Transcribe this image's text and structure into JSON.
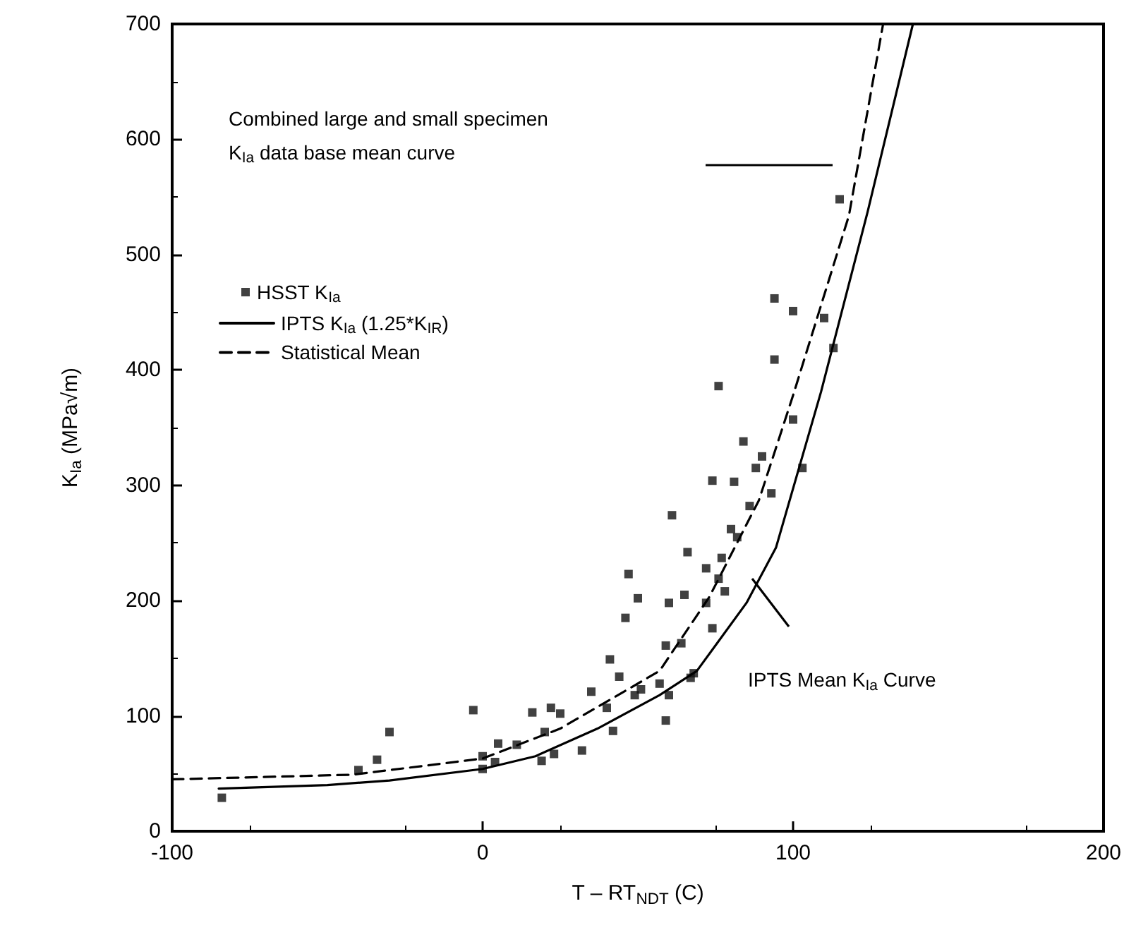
{
  "chart_data": {
    "type": "scatter",
    "xlabel": "T – RT$_{NDT}$ (C)",
    "ylabel": "K$_{Ia}$ (MPa√m)",
    "xlim": [
      -100,
      200
    ],
    "xticks": [
      -100,
      0,
      100,
      200
    ],
    "ylim": [
      0,
      700
    ],
    "yticks": [
      0,
      100,
      200,
      300,
      400,
      500,
      600,
      700
    ],
    "legend": "top left",
    "series": [
      {
        "name": "HSST K$_{Ia}$",
        "marker": "square",
        "color": "#111111",
        "x": [
          -84,
          -30,
          -34,
          -40,
          -3,
          0,
          0,
          4,
          5,
          11,
          16,
          19,
          20,
          22,
          23,
          25,
          32,
          35,
          41,
          40,
          42,
          44,
          46,
          47,
          50,
          49,
          51,
          57,
          59,
          59,
          60,
          61,
          64,
          66,
          60,
          65,
          67,
          68,
          72,
          72,
          74,
          74,
          76,
          77,
          78,
          80,
          81,
          84,
          82,
          86,
          88,
          90,
          93,
          100,
          103,
          115,
          94,
          100,
          110,
          113,
          94,
          76
        ],
        "values": [
          29,
          86,
          62,
          53,
          105,
          54,
          65,
          60,
          76,
          75,
          103,
          61,
          86,
          107,
          67,
          102,
          70,
          121,
          149,
          107,
          87,
          134,
          185,
          223,
          202,
          118,
          123,
          128,
          161,
          96,
          118,
          274,
          163,
          242,
          198,
          205,
          133,
          137,
          198,
          228,
          176,
          304,
          219,
          237,
          208,
          262,
          303,
          338,
          255,
          282,
          315,
          325,
          293,
          357,
          315,
          548,
          462,
          451,
          445,
          419,
          409,
          386
        ]
      },
      {
        "name": "IPTS K$_{Ia}$ (1.25*K$_{IR}$)",
        "type": "line",
        "marker": "none",
        "line_style": "solid",
        "color": "#000000",
        "x": [
          -85,
          -50,
          -30,
          0,
          17,
          37,
          57,
          69,
          85,
          94.5,
          109,
          124,
          138.6
        ],
        "values": [
          37,
          40,
          44,
          54,
          65,
          89,
          118,
          139,
          198,
          246,
          381,
          537,
          700
        ]
      },
      {
        "name": "Statistical Mean",
        "type": "line",
        "marker": "none",
        "line_style": "dashed",
        "color": "#000000",
        "x": [
          -100,
          -42,
          0,
          25,
          57,
          73,
          89,
          100,
          118,
          129
        ],
        "values": [
          45,
          49,
          63,
          89,
          139,
          203,
          287,
          378,
          534,
          700
        ]
      }
    ],
    "annotations": [
      "Combined large and small specimen\nK$_{Ia}$ data base mean curve",
      "IPTS Mean K$_{Ia}$ Curve"
    ]
  }
}
